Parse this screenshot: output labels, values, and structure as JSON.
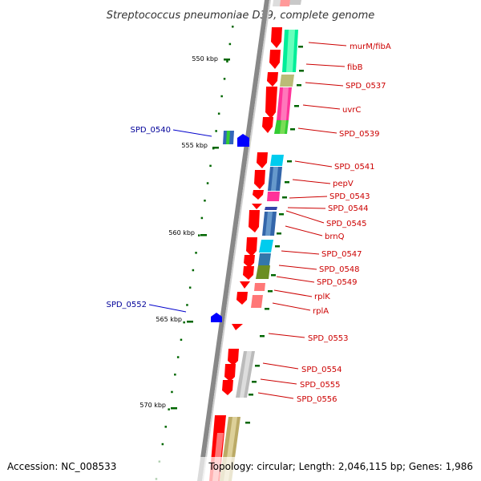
{
  "title": "Streptococcus pneumoniae D39, complete genome",
  "footer": {
    "accession": "Accession: NC_008533",
    "info": "Topology: circular; Length: 2,046,115 bp; Genes: 1,986"
  },
  "scale_labels": [
    "550 kbp",
    "555 kbp",
    "560 kbp",
    "565 kbp",
    "570 kbp"
  ],
  "colors": {
    "forward_gene": "#ff0000",
    "reverse_gene": "#0000ff",
    "forward_label": "#cc0000",
    "reverse_label": "#000099",
    "backbone": "#888888",
    "tick": "#006600"
  },
  "genes_right": [
    {
      "label": "murM/fibA",
      "color": "#cc0000"
    },
    {
      "label": "fibB",
      "color": "#cc0000"
    },
    {
      "label": "SPD_0537",
      "color": "#cc0000"
    },
    {
      "label": "uvrC",
      "color": "#cc0000"
    },
    {
      "label": "SPD_0539",
      "color": "#cc0000"
    },
    {
      "label": "SPD_0541",
      "color": "#cc0000"
    },
    {
      "label": "pepV",
      "color": "#cc0000"
    },
    {
      "label": "SPD_0543",
      "color": "#cc0000"
    },
    {
      "label": "SPD_0544",
      "color": "#cc0000"
    },
    {
      "label": "SPD_0545",
      "color": "#cc0000"
    },
    {
      "label": "brnQ",
      "color": "#cc0000"
    },
    {
      "label": "SPD_0547",
      "color": "#cc0000"
    },
    {
      "label": "SPD_0548",
      "color": "#cc0000"
    },
    {
      "label": "SPD_0549",
      "color": "#cc0000"
    },
    {
      "label": "rplK",
      "color": "#cc0000"
    },
    {
      "label": "rplA",
      "color": "#cc0000"
    },
    {
      "label": "SPD_0553",
      "color": "#cc0000"
    },
    {
      "label": "SPD_0554",
      "color": "#cc0000"
    },
    {
      "label": "SPD_0555",
      "color": "#cc0000"
    },
    {
      "label": "SPD_0556",
      "color": "#cc0000"
    }
  ],
  "genes_left": [
    {
      "label": "SPD_0540",
      "color": "#000099"
    },
    {
      "label": "SPD_0552",
      "color": "#000099"
    }
  ]
}
